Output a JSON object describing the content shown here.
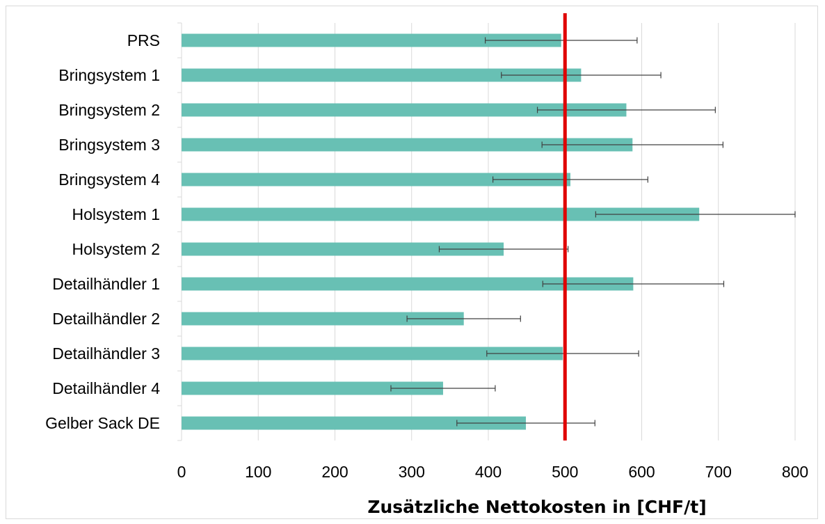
{
  "chart_data": {
    "type": "bar",
    "orientation": "horizontal",
    "title": "",
    "xlabel": "Zusätzliche Nettokosten in [CHF/t]",
    "ylabel": "",
    "xlim": [
      0,
      800
    ],
    "xticks": [
      0,
      100,
      200,
      300,
      400,
      500,
      600,
      700,
      800
    ],
    "grid": "vertical",
    "legend": "none",
    "categories": [
      "PRS",
      "Bringsystem 1",
      "Bringsystem 2",
      "Bringsystem 3",
      "Bringsystem 4",
      "Holsystem 1",
      "Holsystem 2",
      "Detailhändler 1",
      "Detailhändler 2",
      "Detailhändler 3",
      "Detailhändler 4",
      "Gelber Sack DE"
    ],
    "values": [
      495,
      521,
      580,
      588,
      507,
      675,
      420,
      589,
      368,
      497,
      341,
      449
    ],
    "error_low": [
      396,
      417,
      464,
      470,
      406,
      540,
      336,
      471,
      294,
      398,
      273,
      359
    ],
    "error_high": [
      594,
      625,
      696,
      706,
      608,
      800,
      504,
      707,
      442,
      596,
      409,
      539
    ],
    "reference_line": {
      "value": 500,
      "color": "#e00000"
    },
    "colors": {
      "bar": "#68c0b4",
      "error_bar": "#404040",
      "grid": "#d9d9d9"
    }
  }
}
